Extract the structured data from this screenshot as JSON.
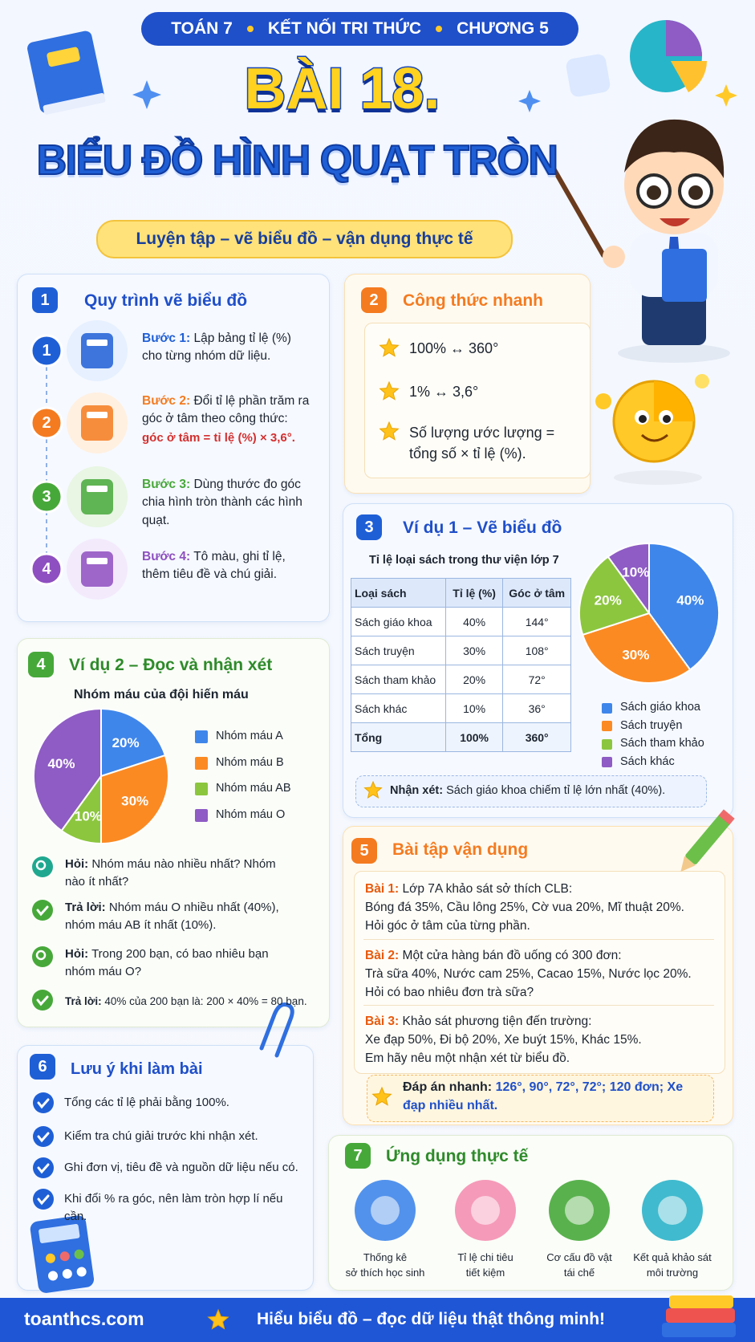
{
  "header": {
    "badge": [
      "TOÁN 7",
      "KẾT NỐI TRI THỨC",
      "CHƯƠNG 5"
    ],
    "title_1": "BÀI 18.",
    "title_2": "BIỂU ĐỒ HÌNH QUẠT TRÒN",
    "subtitle": "Luyện tập – vẽ biểu đồ – vận dụng thực tế"
  },
  "section_1": {
    "number": "1",
    "title": "Quy trình vẽ biểu đồ",
    "steps": [
      {
        "number": "1",
        "label": "Bước 1:",
        "text": "Lập bảng tỉ lệ (%) cho từng nhóm dữ liệu."
      },
      {
        "number": "2",
        "label": "Bước 2:",
        "text": "Đổi tỉ lệ phần trăm ra góc ở tâm theo công thức:",
        "formula": "góc ở tâm = tỉ lệ (%) × 3,6°."
      },
      {
        "number": "3",
        "label": "Bước 3:",
        "text": "Dùng thước đo góc chia hình tròn thành các hình quạt."
      },
      {
        "number": "4",
        "label": "Bước 4:",
        "text": "Tô màu, ghi tỉ lệ, thêm tiêu đề và chú giải."
      }
    ]
  },
  "section_2": {
    "number": "2",
    "title": "Công thức nhanh",
    "items": [
      "100% ↔ 360°",
      "1% ↔ 3,6°",
      "Số lượng ước lượng = tổng số × tỉ lệ (%)."
    ]
  },
  "section_3": {
    "number": "3",
    "title": "Ví dụ 1 – Vẽ biểu đồ",
    "table_title": "Tỉ lệ loại sách trong thư viện lớp 7",
    "table": {
      "header": [
        "Loại sách",
        "Tỉ lệ (%)",
        "Góc ở tâm"
      ],
      "rows": [
        [
          "Sách giáo khoa",
          "40%",
          "144°"
        ],
        [
          "Sách truyện",
          "30%",
          "108°"
        ],
        [
          "Sách tham khảo",
          "20%",
          "72°"
        ],
        [
          "Sách khác",
          "10%",
          "36°"
        ]
      ],
      "total": [
        "Tổng",
        "100%",
        "360°"
      ]
    },
    "chart": {
      "type": "pie",
      "categories": [
        "Sách giáo khoa",
        "Sách truyện",
        "Sách tham khảo",
        "Sách khác"
      ],
      "values": [
        40,
        30,
        20,
        10
      ],
      "value_labels": [
        "40%",
        "30%",
        "20%",
        "10%"
      ],
      "colors": [
        "#3f86ea",
        "#fb8a23",
        "#8cc63f",
        "#8e5cc4"
      ]
    },
    "note_label": "Nhận xét:",
    "note": "Sách giáo khoa chiếm tỉ lệ lớn nhất (40%)."
  },
  "section_4": {
    "number": "4",
    "title": "Ví dụ 2 – Đọc và nhận xét",
    "chart": {
      "type": "pie",
      "title": "Nhóm máu của đội hiến máu",
      "categories": [
        "Nhóm máu A",
        "Nhóm máu B",
        "Nhóm máu AB",
        "Nhóm máu O"
      ],
      "values": [
        20,
        30,
        10,
        40
      ],
      "value_labels": [
        "20%",
        "30%",
        "10%",
        "40%"
      ],
      "colors": [
        "#3f86ea",
        "#fb8a23",
        "#8cc63f",
        "#8e5cc4"
      ]
    },
    "qa": [
      {
        "label": "Hỏi:",
        "text": "Nhóm máu nào nhiều nhất? Nhóm nào ít nhất?"
      },
      {
        "label": "Trả lời:",
        "text": "Nhóm máu O nhiều nhất (40%), nhóm máu AB ít nhất (10%)."
      },
      {
        "label": "Hỏi:",
        "text": "Trong 200 bạn, có bao nhiêu bạn nhóm máu O?"
      },
      {
        "label": "Trả lời:",
        "text": "40% của 200 bạn là: 200 × 40% = 80 bạn."
      }
    ]
  },
  "section_5": {
    "number": "5",
    "title": "Bài tập vận dụng",
    "exercises": [
      {
        "label": "Bài 1:",
        "lines": [
          "Lớp 7A khảo sát sở thích CLB:",
          "Bóng đá 35%, Cầu lông 25%, Cờ vua 20%, Mĩ thuật 20%.",
          "Hỏi góc ở tâm của từng phần."
        ]
      },
      {
        "label": "Bài 2:",
        "lines": [
          "Một cửa hàng bán đồ uống có 300 đơn:",
          "Trà sữa 40%, Nước cam 25%, Cacao 15%, Nước lọc 20%.",
          "Hỏi có bao nhiêu đơn trà sữa?"
        ]
      },
      {
        "label": "Bài 3:",
        "lines": [
          "Khảo sát phương tiện đến trường:",
          "Xe đạp 50%, Đi bộ 20%, Xe buýt 15%, Khác 15%.",
          "Em hãy nêu một nhận xét từ biểu đồ."
        ]
      }
    ],
    "answer_label": "Đáp án nhanh:",
    "answer": "126°, 90°, 72°, 72°; 120 đơn; Xe đạp nhiều nhất."
  },
  "section_6": {
    "number": "6",
    "title": "Lưu ý khi làm bài",
    "items": [
      "Tổng các tỉ lệ phải bằng 100%.",
      "Kiểm tra chú giải trước khi nhận xét.",
      "Ghi đơn vị, tiêu đề và nguồn dữ liệu nếu có.",
      "Khi đổi % ra góc, nên làm tròn hợp lí nếu cần."
    ]
  },
  "section_7": {
    "number": "7",
    "title": "Ứng dụng thực tế",
    "items": [
      [
        "Thống kê",
        "sở thích học sinh"
      ],
      [
        "Tỉ lệ chi tiêu",
        "tiết kiệm"
      ],
      [
        "Cơ cấu đồ vật",
        "tái chế"
      ],
      [
        "Kết quả khảo sát",
        "môi trường"
      ]
    ]
  },
  "footer": {
    "site": "toanthcs.com",
    "slogan": "Hiểu biểu đồ – đọc dữ liệu thật thông minh!"
  }
}
